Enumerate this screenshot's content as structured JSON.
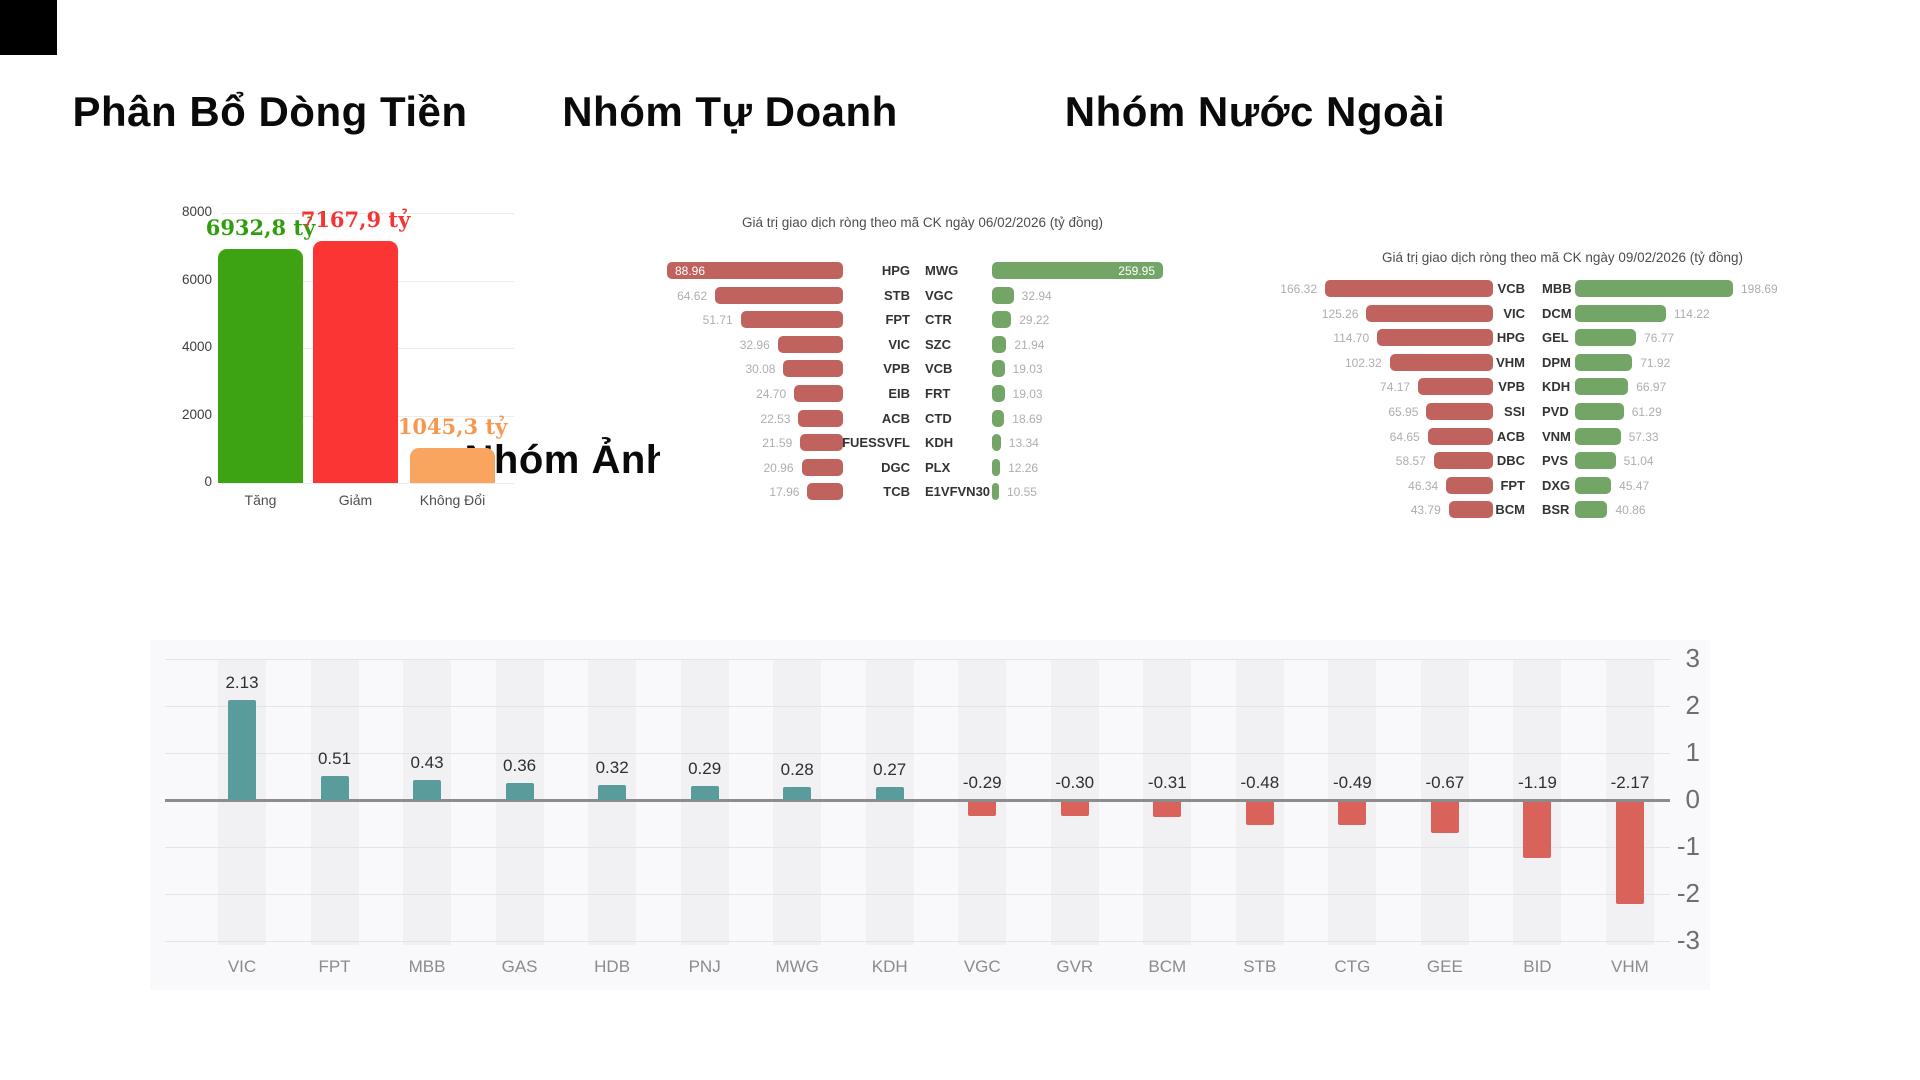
{
  "titles": {
    "money_flow": "Phân Bổ Dòng Tiền",
    "proprietary": "Nhóm Tự Doanh",
    "foreign": "Nhóm Nước Ngoài",
    "vnindex_impact": "Nhóm Ảnh Hưởng Đến VN-INDEX"
  },
  "chart_data": [
    {
      "id": "money-flow",
      "type": "bar",
      "title": "Phân Bổ Dòng Tiền",
      "categories": [
        "Tăng",
        "Giảm",
        "Không Đổi"
      ],
      "values": [
        6932.8,
        7167.9,
        1045.3
      ],
      "value_labels": [
        "6932,8 tỷ",
        "7167,9 tỷ",
        "1045,3 tỷ"
      ],
      "bar_colors": [
        "#3ea313",
        "#fb3434",
        "#f9a55f"
      ],
      "label_colors": [
        "#2f9e0d",
        "#f63434",
        "#f79851"
      ],
      "yticks": [
        8000,
        6000,
        4000,
        2000,
        0
      ],
      "ylim": [
        0,
        8000
      ],
      "grid": true,
      "legend": "none"
    },
    {
      "id": "proprietary-net-trading",
      "type": "tornado",
      "title": "Giá trị giao dịch ròng theo mã CK ngày 06/02/2026 (tỷ đồng)",
      "left_side": "sell-net (red)",
      "right_side": "buy-net (green)",
      "left_color": "#c0635e",
      "right_color": "#72a566",
      "rows": [
        {
          "left_value": 88.96,
          "left_label": "88.96",
          "left_ticker": "HPG",
          "right_ticker": "MWG",
          "right_value": 259.95,
          "right_label": "259.95",
          "values_inside": true
        },
        {
          "left_value": 64.62,
          "left_label": "64.62",
          "left_ticker": "STB",
          "right_ticker": "VGC",
          "right_value": 32.94,
          "right_label": "32.94"
        },
        {
          "left_value": 51.71,
          "left_label": "51.71",
          "left_ticker": "FPT",
          "right_ticker": "CTR",
          "right_value": 29.22,
          "right_label": "29.22"
        },
        {
          "left_value": 32.96,
          "left_label": "32.96",
          "left_ticker": "VIC",
          "right_ticker": "SZC",
          "right_value": 21.94,
          "right_label": "21.94"
        },
        {
          "left_value": 30.08,
          "left_label": "30.08",
          "left_ticker": "VPB",
          "right_ticker": "VCB",
          "right_value": 19.03,
          "right_label": "19.03"
        },
        {
          "left_value": 24.7,
          "left_label": "24.70",
          "left_ticker": "EIB",
          "right_ticker": "FRT",
          "right_value": 19.03,
          "right_label": "19.03"
        },
        {
          "left_value": 22.53,
          "left_label": "22.53",
          "left_ticker": "ACB",
          "right_ticker": "CTD",
          "right_value": 18.69,
          "right_label": "18.69"
        },
        {
          "left_value": 21.59,
          "left_label": "21.59",
          "left_ticker": "FUESSVFL",
          "right_ticker": "KDH",
          "right_value": 13.34,
          "right_label": "13.34"
        },
        {
          "left_value": 20.96,
          "left_label": "20.96",
          "left_ticker": "DGC",
          "right_ticker": "PLX",
          "right_value": 12.26,
          "right_label": "12.26"
        },
        {
          "left_value": 17.96,
          "left_label": "17.96",
          "left_ticker": "TCB",
          "right_ticker": "E1VFVN30",
          "right_value": 10.55,
          "right_label": "10.55"
        }
      ]
    },
    {
      "id": "foreign-net-trading",
      "type": "tornado",
      "title": "Giá trị giao dịch ròng theo mã CK ngày 09/02/2026 (tỷ đồng)",
      "left_side": "sell-net (red)",
      "right_side": "buy-net (green)",
      "left_color": "#c0635e",
      "right_color": "#72a566",
      "rows": [
        {
          "left_value": 166.32,
          "left_label": "166.32",
          "left_ticker": "VCB",
          "right_ticker": "MBB",
          "right_value": 198.69,
          "right_label": "198.69"
        },
        {
          "left_value": 125.26,
          "left_label": "125.26",
          "left_ticker": "VIC",
          "right_ticker": "DCM",
          "right_value": 114.22,
          "right_label": "114.22"
        },
        {
          "left_value": 114.7,
          "left_label": "114.70",
          "left_ticker": "HPG",
          "right_ticker": "GEL",
          "right_value": 76.77,
          "right_label": "76.77"
        },
        {
          "left_value": 102.32,
          "left_label": "102.32",
          "left_ticker": "VHM",
          "right_ticker": "DPM",
          "right_value": 71.92,
          "right_label": "71.92"
        },
        {
          "left_value": 74.17,
          "left_label": "74.17",
          "left_ticker": "VPB",
          "right_ticker": "KDH",
          "right_value": 66.97,
          "right_label": "66.97"
        },
        {
          "left_value": 65.95,
          "left_label": "65.95",
          "left_ticker": "SSI",
          "right_ticker": "PVD",
          "right_value": 61.29,
          "right_label": "61.29"
        },
        {
          "left_value": 64.65,
          "left_label": "64.65",
          "left_ticker": "ACB",
          "right_ticker": "VNM",
          "right_value": 57.33,
          "right_label": "57.33"
        },
        {
          "left_value": 58.57,
          "left_label": "58.57",
          "left_ticker": "DBC",
          "right_ticker": "PVS",
          "right_value": 51.04,
          "right_label": "51.04"
        },
        {
          "left_value": 46.34,
          "left_label": "46.34",
          "left_ticker": "FPT",
          "right_ticker": "DXG",
          "right_value": 45.47,
          "right_label": "45.47"
        },
        {
          "left_value": 43.79,
          "left_label": "43.79",
          "left_ticker": "BCM",
          "right_ticker": "BSR",
          "right_value": 40.86,
          "right_label": "40.86"
        }
      ]
    },
    {
      "id": "vnindex-impact",
      "type": "bar",
      "title": "Nhóm Ảnh Hưởng Đến VN-INDEX",
      "categories": [
        "VIC",
        "FPT",
        "MBB",
        "GAS",
        "HDB",
        "PNJ",
        "MWG",
        "KDH",
        "VGC",
        "GVR",
        "BCM",
        "STB",
        "CTG",
        "GEE",
        "BID",
        "VHM"
      ],
      "values": [
        2.13,
        0.51,
        0.43,
        0.36,
        0.32,
        0.29,
        0.28,
        0.27,
        -0.29,
        -0.3,
        -0.31,
        -0.48,
        -0.49,
        -0.67,
        -1.19,
        -2.17
      ],
      "value_labels": [
        "2.13",
        "0.51",
        "0.43",
        "0.36",
        "0.32",
        "0.29",
        "0.28",
        "0.27",
        "-0.29",
        "-0.30",
        "-0.31",
        "-0.48",
        "-0.49",
        "-0.67",
        "-1.19",
        "-2.17"
      ],
      "positive_color": "#5a9c9b",
      "negative_color": "#d9625a",
      "yticks": [
        3,
        2,
        1,
        0,
        -1,
        -2,
        -3
      ],
      "ylim": [
        -3,
        3
      ],
      "grid": true,
      "legend": "none",
      "y_axis_side": "right"
    }
  ]
}
